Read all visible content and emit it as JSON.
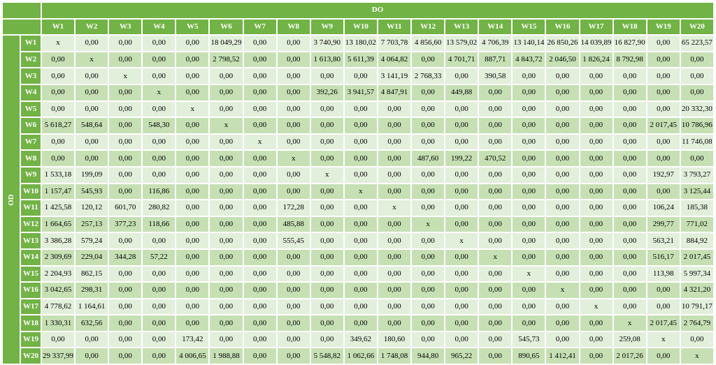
{
  "header": {
    "do_label": "DO",
    "od_label": "OD"
  },
  "columns": [
    "W1",
    "W2",
    "W3",
    "W4",
    "W5",
    "W6",
    "W7",
    "W8",
    "W9",
    "W10",
    "W11",
    "W12",
    "W13",
    "W14",
    "W15",
    "W16",
    "W17",
    "W18",
    "W19",
    "W20"
  ],
  "rows": [
    {
      "label": "W1",
      "values": [
        "x",
        "0,00",
        "0,00",
        "0,00",
        "0,00",
        "18 049,29",
        "0,00",
        "0,00",
        "3 740,90",
        "13 180,02",
        "7 703,78",
        "4 856,60",
        "13 579,02",
        "4 706,39",
        "13 140,14",
        "26 850,26",
        "14 039,89",
        "16 827,90",
        "0,00",
        "65 223,57"
      ]
    },
    {
      "label": "W2",
      "values": [
        "0,00",
        "x",
        "0,00",
        "0,00",
        "0,00",
        "2 798,52",
        "0,00",
        "0,00",
        "1 613,80",
        "5 611,39",
        "4 064,82",
        "0,00",
        "4 701,71",
        "887,71",
        "4 843,72",
        "2 046,50",
        "1 826,24",
        "8 792,98",
        "0,00",
        "0,00"
      ]
    },
    {
      "label": "W3",
      "values": [
        "0,00",
        "0,00",
        "x",
        "0,00",
        "0,00",
        "0,00",
        "0,00",
        "0,00",
        "0,00",
        "0,00",
        "3 141,19",
        "2 768,33",
        "0,00",
        "390,58",
        "0,00",
        "0,00",
        "0,00",
        "0,00",
        "0,00",
        "0,00"
      ]
    },
    {
      "label": "W4",
      "values": [
        "0,00",
        "0,00",
        "0,00",
        "x",
        "0,00",
        "0,00",
        "0,00",
        "0,00",
        "392,26",
        "3 941,57",
        "4 847,91",
        "0,00",
        "449,88",
        "0,00",
        "0,00",
        "0,00",
        "0,00",
        "0,00",
        "0,00",
        "0,00"
      ]
    },
    {
      "label": "W5",
      "values": [
        "0,00",
        "0,00",
        "0,00",
        "0,00",
        "x",
        "0,00",
        "0,00",
        "0,00",
        "0,00",
        "0,00",
        "0,00",
        "0,00",
        "0,00",
        "0,00",
        "0,00",
        "0,00",
        "0,00",
        "0,00",
        "0,00",
        "20 332,30"
      ]
    },
    {
      "label": "W6",
      "values": [
        "5 618,27",
        "548,64",
        "0,00",
        "548,30",
        "0,00",
        "x",
        "0,00",
        "0,00",
        "0,00",
        "0,00",
        "0,00",
        "0,00",
        "0,00",
        "0,00",
        "0,00",
        "0,00",
        "0,00",
        "0,00",
        "2 017,45",
        "10 786,96"
      ]
    },
    {
      "label": "W7",
      "values": [
        "0,00",
        "0,00",
        "0,00",
        "0,00",
        "0,00",
        "0,00",
        "x",
        "0,00",
        "0,00",
        "0,00",
        "0,00",
        "0,00",
        "0,00",
        "0,00",
        "0,00",
        "0,00",
        "0,00",
        "0,00",
        "0,00",
        "11 746,08"
      ]
    },
    {
      "label": "W8",
      "values": [
        "0,00",
        "0,00",
        "0,00",
        "0,00",
        "0,00",
        "0,00",
        "0,00",
        "x",
        "0,00",
        "0,00",
        "0,00",
        "487,60",
        "199,22",
        "470,52",
        "0,00",
        "0,00",
        "0,00",
        "0,00",
        "0,00",
        "0,00"
      ]
    },
    {
      "label": "W9",
      "values": [
        "1 533,18",
        "199,09",
        "0,00",
        "0,00",
        "0,00",
        "0,00",
        "0,00",
        "0,00",
        "x",
        "0,00",
        "0,00",
        "0,00",
        "0,00",
        "0,00",
        "0,00",
        "0,00",
        "0,00",
        "0,00",
        "192,97",
        "3 793,27"
      ]
    },
    {
      "label": "W10",
      "values": [
        "1 157,47",
        "545,93",
        "0,00",
        "116,86",
        "0,00",
        "0,00",
        "0,00",
        "0,00",
        "0,00",
        "x",
        "0,00",
        "0,00",
        "0,00",
        "0,00",
        "0,00",
        "0,00",
        "0,00",
        "0,00",
        "0,00",
        "3 125,44"
      ]
    },
    {
      "label": "W11",
      "values": [
        "1 425,58",
        "120,12",
        "601,70",
        "280,82",
        "0,00",
        "0,00",
        "0,00",
        "172,28",
        "0,00",
        "0,00",
        "x",
        "0,00",
        "0,00",
        "0,00",
        "0,00",
        "0,00",
        "0,00",
        "0,00",
        "106,24",
        "185,38"
      ]
    },
    {
      "label": "W12",
      "values": [
        "1 664,65",
        "257,13",
        "377,23",
        "118,66",
        "0,00",
        "0,00",
        "0,00",
        "485,88",
        "0,00",
        "0,00",
        "0,00",
        "x",
        "0,00",
        "0,00",
        "0,00",
        "0,00",
        "0,00",
        "0,00",
        "299,77",
        "771,02"
      ]
    },
    {
      "label": "W13",
      "values": [
        "3 386,28",
        "579,24",
        "0,00",
        "0,00",
        "0,00",
        "0,00",
        "0,00",
        "555,45",
        "0,00",
        "0,00",
        "0,00",
        "0,00",
        "x",
        "0,00",
        "0,00",
        "0,00",
        "0,00",
        "0,00",
        "563,21",
        "884,92"
      ]
    },
    {
      "label": "W14",
      "values": [
        "2 309,69",
        "229,04",
        "344,28",
        "57,22",
        "0,00",
        "0,00",
        "0,00",
        "0,00",
        "0,00",
        "0,00",
        "0,00",
        "0,00",
        "0,00",
        "x",
        "0,00",
        "0,00",
        "0,00",
        "0,00",
        "516,17",
        "2 017,45"
      ]
    },
    {
      "label": "W15",
      "values": [
        "2 204,93",
        "862,15",
        "0,00",
        "0,00",
        "0,00",
        "0,00",
        "0,00",
        "0,00",
        "0,00",
        "0,00",
        "0,00",
        "0,00",
        "0,00",
        "0,00",
        "x",
        "0,00",
        "0,00",
        "0,00",
        "113,98",
        "5 997,34"
      ]
    },
    {
      "label": "W16",
      "values": [
        "3 042,65",
        "298,31",
        "0,00",
        "0,00",
        "0,00",
        "0,00",
        "0,00",
        "0,00",
        "0,00",
        "0,00",
        "0,00",
        "0,00",
        "0,00",
        "0,00",
        "0,00",
        "x",
        "0,00",
        "0,00",
        "0,00",
        "4 321,20"
      ]
    },
    {
      "label": "W17",
      "values": [
        "4 778,62",
        "1 164,61",
        "0,00",
        "0,00",
        "0,00",
        "0,00",
        "0,00",
        "0,00",
        "0,00",
        "0,00",
        "0,00",
        "0,00",
        "0,00",
        "0,00",
        "0,00",
        "0,00",
        "x",
        "0,00",
        "0,00",
        "10 791,17"
      ]
    },
    {
      "label": "W18",
      "values": [
        "1 330,31",
        "632,56",
        "0,00",
        "0,00",
        "0,00",
        "0,00",
        "0,00",
        "0,00",
        "0,00",
        "0,00",
        "0,00",
        "0,00",
        "0,00",
        "0,00",
        "0,00",
        "0,00",
        "0,00",
        "x",
        "2 017,45",
        "2 764,79"
      ]
    },
    {
      "label": "W19",
      "values": [
        "0,00",
        "0,00",
        "0,00",
        "0,00",
        "173,42",
        "0,00",
        "0,00",
        "0,00",
        "0,00",
        "349,62",
        "180,60",
        "0,00",
        "0,00",
        "0,00",
        "545,73",
        "0,00",
        "0,00",
        "259,08",
        "x",
        "0,00"
      ]
    },
    {
      "label": "W20",
      "values": [
        "29 337,99",
        "0,00",
        "0,00",
        "0,00",
        "4 006,65",
        "1 988,88",
        "0,00",
        "0,00",
        "5 548,82",
        "1 062,66",
        "1 748,08",
        "944,80",
        "965,22",
        "0,00",
        "890,65",
        "1 412,41",
        "0,00",
        "2 017,26",
        "0,00",
        "x"
      ]
    }
  ]
}
